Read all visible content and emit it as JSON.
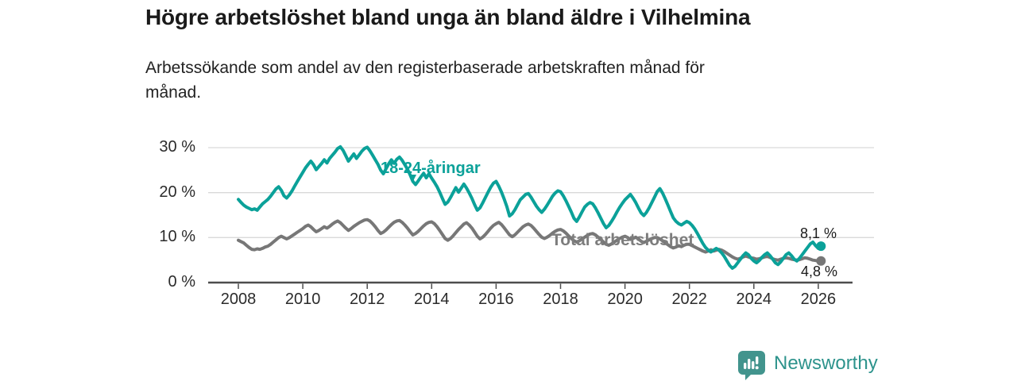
{
  "header": {
    "title": "Högre arbetslöshet bland unga än bland äldre i Vilhelmina",
    "subtitle_line1": "Arbetssökande som andel av den registerbaserade arbetskraften månad för",
    "subtitle_line2": "månad."
  },
  "branding": {
    "name": "Newsworthy"
  },
  "colors": {
    "youth_line": "#0ba199",
    "total_line": "#777777",
    "axis": "#4d4d4d",
    "gridline": "#d9d9d9",
    "brand_teal": "#42948d"
  },
  "annotations": {
    "youth_marker": "▼"
  },
  "chart_data": {
    "type": "line",
    "title": "Högre arbetslöshet bland unga än bland äldre i Vilhelmina",
    "subtitle": "Arbetssökande som andel av den registerbaserade arbetskraften månad för månad.",
    "unit": "%",
    "frequency": "monthly",
    "x_start_year": 2008,
    "x_end_label": "2026-02",
    "grid": true,
    "ylim": [
      0,
      32
    ],
    "y_tick_values": [
      0,
      10,
      20,
      30
    ],
    "y_tick_labels": [
      "0 %",
      "10 %",
      "20 %",
      "30 %"
    ],
    "x_tick_years": [
      2008,
      2010,
      2012,
      2014,
      2016,
      2018,
      2020,
      2022,
      2024,
      2026
    ],
    "series": [
      {
        "name": "18-24-åringar",
        "color": "#0ba199",
        "end_label": "8,1 %",
        "end_value": 8.1,
        "values": [
          18.5,
          17.8,
          17.2,
          16.8,
          16.5,
          16.2,
          16.4,
          16.1,
          16.8,
          17.5,
          18.0,
          18.5,
          19.2,
          20.0,
          20.8,
          21.3,
          20.5,
          19.3,
          18.8,
          19.5,
          20.4,
          21.5,
          22.5,
          23.5,
          24.5,
          25.5,
          26.3,
          27.0,
          26.2,
          25.1,
          25.8,
          26.5,
          27.3,
          26.6,
          27.6,
          28.3,
          29.0,
          29.8,
          30.2,
          29.4,
          28.2,
          27.0,
          27.8,
          28.6,
          27.6,
          28.4,
          29.2,
          29.8,
          30.1,
          29.3,
          28.3,
          27.3,
          26.3,
          25.0,
          24.2,
          25.3,
          26.4,
          27.3,
          26.5,
          27.4,
          27.9,
          27.2,
          26.2,
          25.2,
          23.9,
          22.5,
          21.8,
          22.6,
          23.5,
          24.3,
          23.3,
          24.2,
          23.2,
          22.3,
          21.3,
          20.1,
          18.7,
          17.4,
          17.9,
          18.9,
          20.0,
          21.1,
          20.1,
          21.0,
          21.9,
          21.0,
          19.9,
          18.7,
          17.3,
          16.1,
          16.6,
          17.7,
          18.9,
          20.1,
          21.2,
          22.1,
          22.5,
          21.4,
          20.1,
          18.6,
          16.9,
          14.8,
          15.3,
          16.2,
          17.3,
          18.4,
          19.0,
          19.6,
          19.8,
          19.0,
          18.0,
          17.0,
          16.2,
          15.6,
          16.3,
          17.2,
          18.2,
          19.2,
          19.9,
          20.4,
          20.2,
          19.3,
          18.2,
          17.0,
          15.7,
          14.3,
          13.6,
          14.6,
          15.7,
          16.8,
          17.4,
          17.8,
          17.5,
          16.6,
          15.5,
          14.3,
          13.1,
          12.2,
          12.7,
          13.6,
          14.6,
          15.7,
          16.7,
          17.6,
          18.4,
          19.0,
          19.6,
          18.8,
          17.8,
          16.6,
          15.5,
          14.9,
          15.6,
          16.6,
          17.8,
          19.0,
          20.2,
          20.9,
          19.9,
          18.6,
          17.2,
          15.8,
          14.4,
          13.6,
          13.1,
          12.8,
          13.2,
          13.6,
          13.3,
          12.7,
          11.9,
          10.9,
          9.8,
          8.7,
          7.8,
          7.2,
          6.8,
          7.2,
          7.6,
          7.2,
          6.6,
          5.8,
          4.8,
          3.8,
          3.2,
          3.6,
          4.4,
          5.2,
          6.0,
          6.6,
          6.2,
          5.4,
          4.8,
          4.4,
          4.9,
          5.6,
          6.2,
          6.6,
          6.0,
          5.2,
          4.4,
          4.0,
          4.6,
          5.4,
          6.2,
          6.6,
          6.0,
          5.2,
          4.8,
          5.4,
          6.2,
          7.0,
          7.8,
          8.6,
          9.0,
          8.2,
          7.6,
          8.1
        ]
      },
      {
        "name": "Total arbetslöshet",
        "color": "#777777",
        "end_label": "4,8 %",
        "end_value": 4.8,
        "values": [
          9.4,
          9.1,
          8.8,
          8.3,
          7.8,
          7.4,
          7.3,
          7.5,
          7.4,
          7.6,
          7.9,
          8.1,
          8.5,
          9.0,
          9.5,
          10.0,
          10.3,
          10.0,
          9.7,
          10.0,
          10.4,
          10.8,
          11.2,
          11.6,
          12.0,
          12.5,
          12.8,
          12.4,
          11.8,
          11.3,
          11.6,
          12.0,
          12.4,
          12.1,
          12.5,
          13.0,
          13.4,
          13.7,
          13.3,
          12.7,
          12.1,
          11.6,
          12.0,
          12.5,
          12.9,
          13.3,
          13.6,
          13.9,
          14.0,
          13.7,
          13.1,
          12.4,
          11.6,
          10.9,
          11.2,
          11.7,
          12.3,
          12.9,
          13.4,
          13.7,
          13.8,
          13.4,
          12.8,
          12.1,
          11.3,
          10.6,
          10.9,
          11.4,
          12.0,
          12.6,
          13.1,
          13.4,
          13.5,
          13.1,
          12.4,
          11.6,
          10.7,
          9.8,
          9.4,
          9.8,
          10.4,
          11.1,
          11.8,
          12.4,
          13.0,
          13.3,
          12.8,
          12.1,
          11.2,
          10.3,
          9.7,
          10.1,
          10.7,
          11.4,
          12.1,
          12.7,
          13.1,
          13.4,
          12.9,
          12.2,
          11.4,
          10.6,
          10.2,
          10.6,
          11.2,
          11.8,
          12.4,
          12.8,
          13.0,
          12.7,
          12.1,
          11.4,
          10.7,
          10.1,
          9.8,
          10.1,
          10.5,
          11.0,
          11.4,
          11.7,
          11.8,
          11.5,
          11.0,
          10.4,
          9.8,
          9.3,
          9.0,
          9.3,
          9.7,
          10.1,
          10.5,
          10.8,
          10.9,
          10.6,
          10.1,
          9.6,
          9.0,
          8.5,
          8.3,
          8.6,
          9.0,
          9.4,
          9.8,
          10.1,
          10.3,
          10.0,
          9.6,
          9.8,
          10.1,
          9.7,
          9.2,
          8.9,
          9.2,
          9.5,
          9.8,
          10.0,
          10.0,
          9.7,
          9.3,
          8.8,
          8.4,
          8.0,
          7.7,
          7.9,
          8.2,
          8.0,
          8.3,
          8.5,
          8.5,
          8.2,
          7.9,
          7.6,
          7.3,
          7.0,
          6.8,
          7.0,
          7.3,
          7.0,
          7.2,
          7.4,
          7.2,
          6.9,
          6.5,
          6.1,
          5.7,
          5.4,
          5.2,
          5.4,
          5.7,
          5.9,
          5.7,
          5.5,
          5.4,
          5.2,
          5.3,
          5.5,
          5.7,
          5.8,
          5.6,
          5.3,
          5.1,
          5.0,
          5.2,
          5.4,
          5.5,
          5.4,
          5.2,
          5.1,
          5.0,
          5.1,
          5.3,
          5.5,
          5.4,
          5.2,
          5.0,
          4.9,
          4.8,
          4.8
        ]
      }
    ],
    "legend_position": "inline-labels"
  }
}
